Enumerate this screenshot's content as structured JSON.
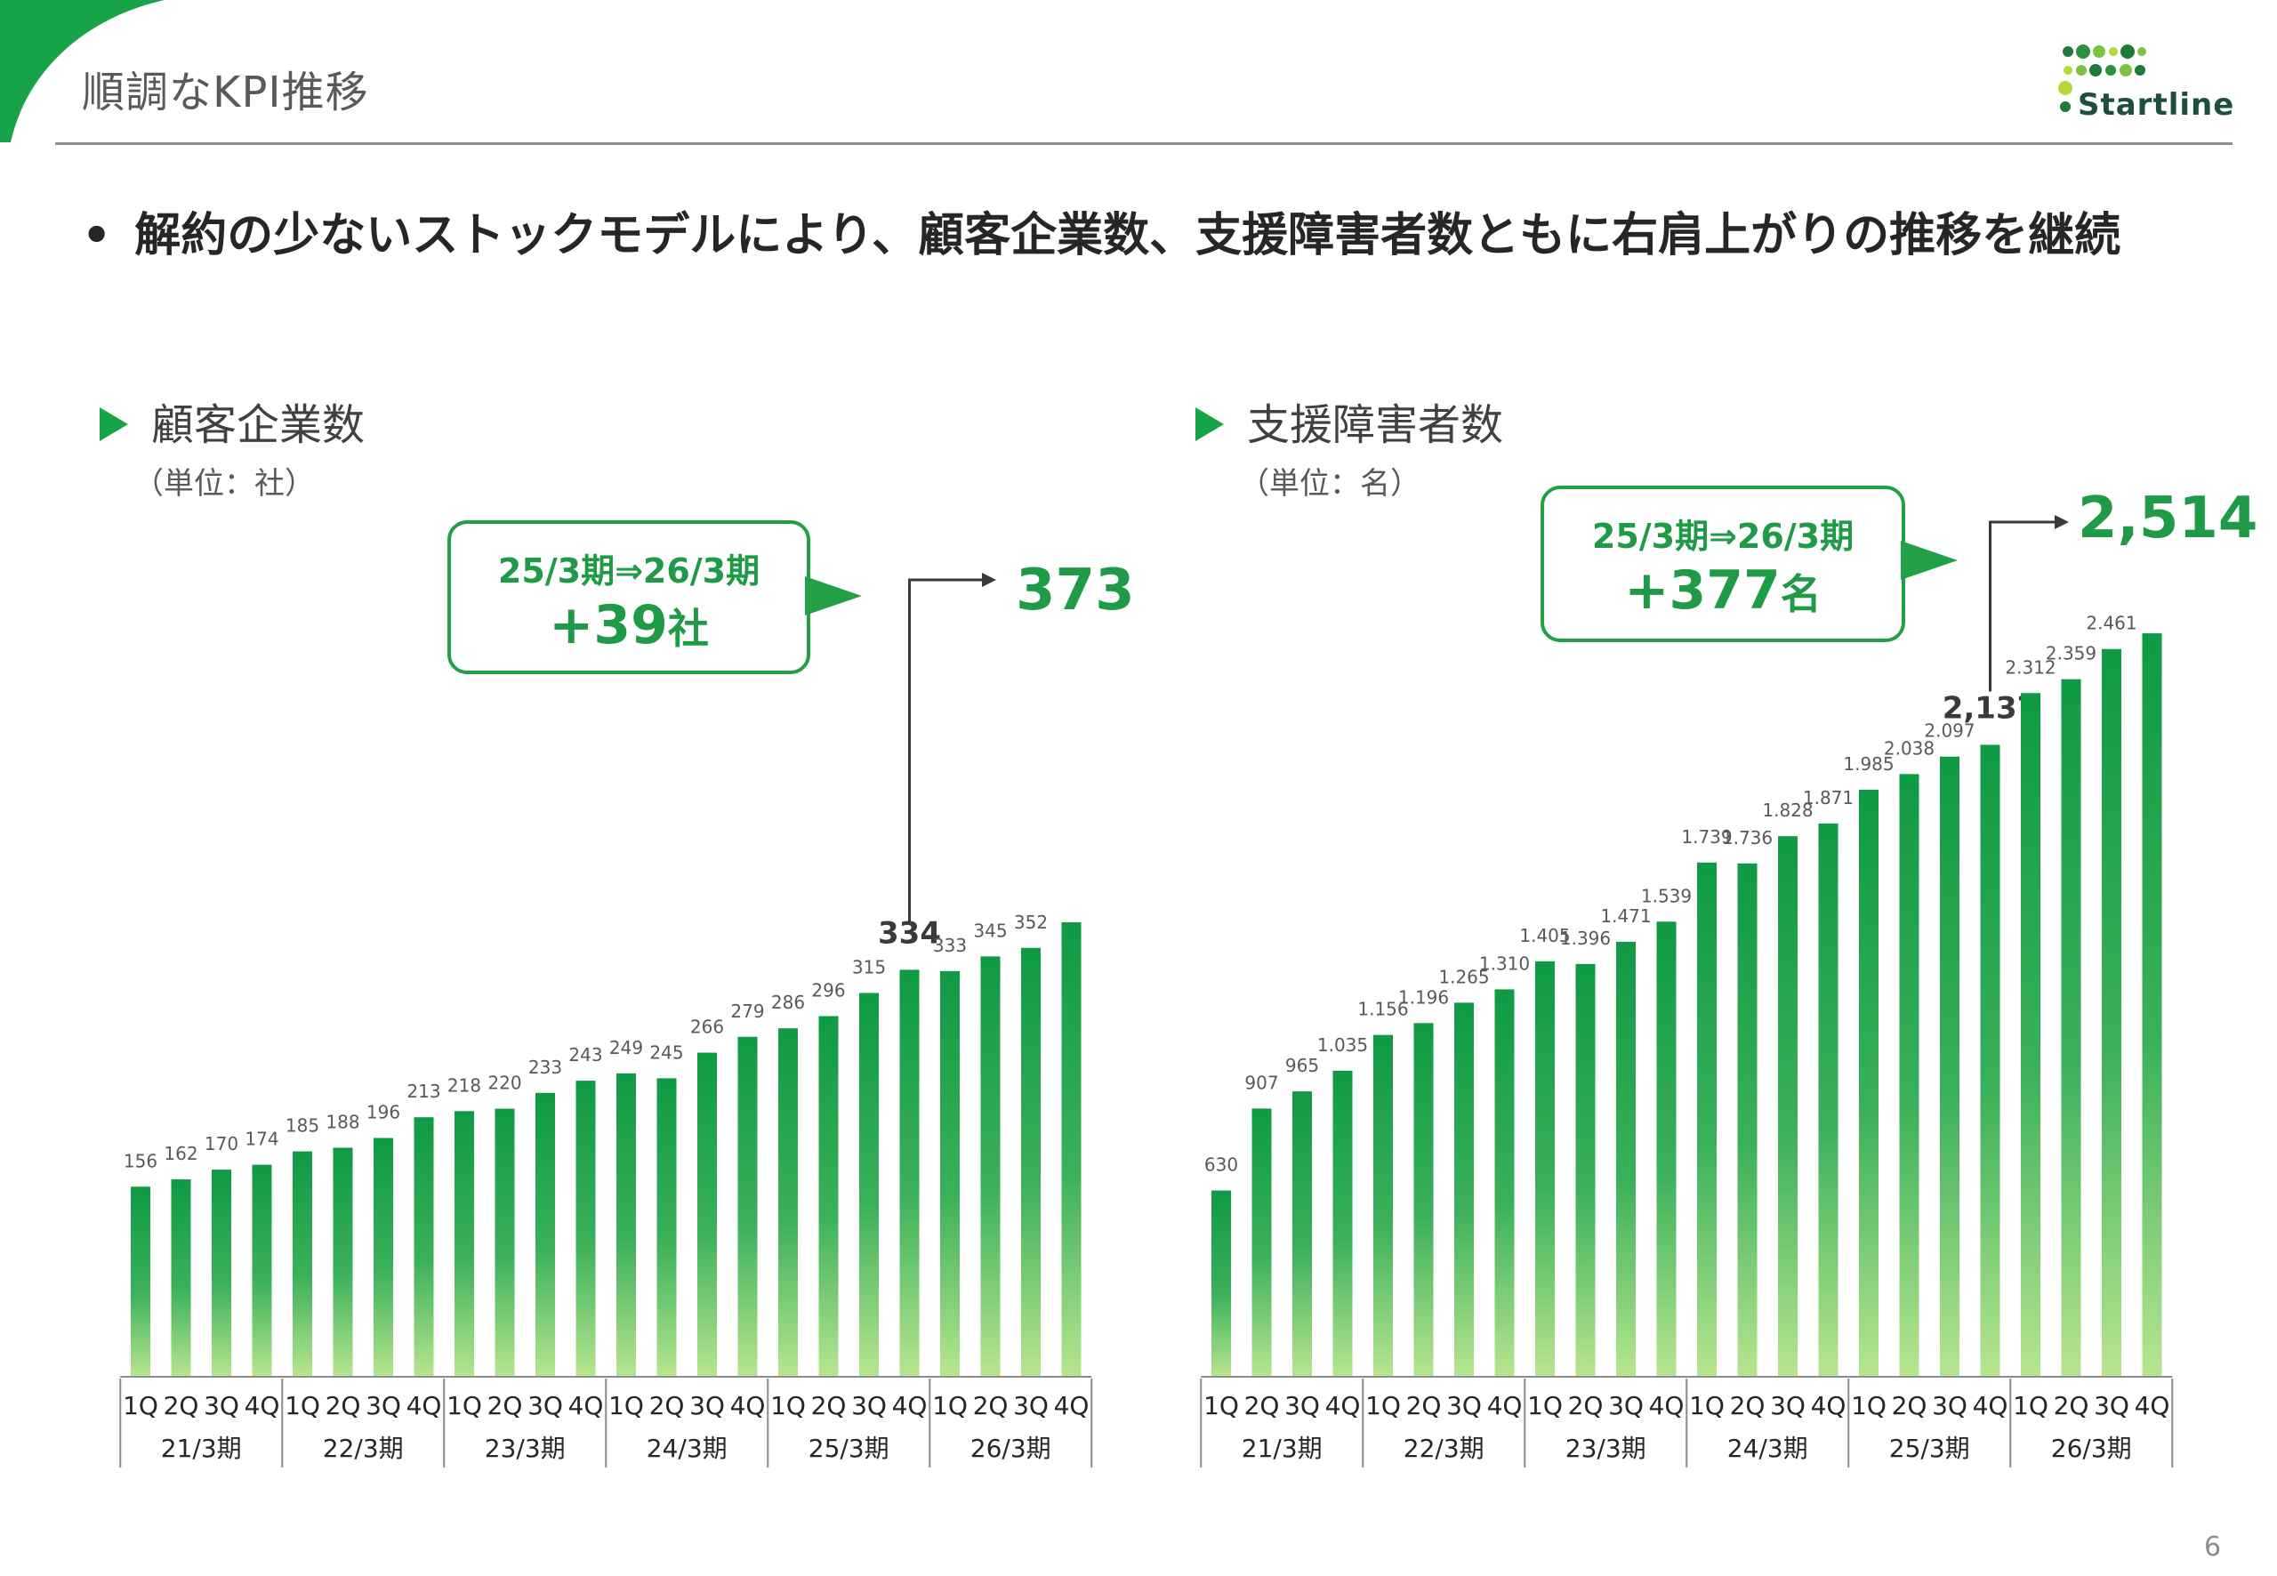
{
  "page": {
    "title": "順調なKPI推移",
    "headline": "解約の少ないストックモデルにより、顧客企業数、支援障害者数ともに右肩上がりの推移を継続",
    "bullet": "•",
    "page_number": "6",
    "logo": {
      "word": "Startline",
      "icon": "dot-cluster-logo",
      "colors": [
        "#1f7a3a",
        "#7cc242",
        "#b5d93a"
      ]
    },
    "accent_color": "#16a34a"
  },
  "left": {
    "heading": "顧客企業数",
    "unit": "（単位：社）",
    "callout": {
      "period": "25/3期⇒26/3期",
      "delta_prefix": "+",
      "delta_number": "39",
      "delta_unit": "社"
    },
    "latest_value": "373"
  },
  "right": {
    "heading": "支援障害者数",
    "unit": "（単位：名）",
    "callout": {
      "period": "25/3期⇒26/3期",
      "delta_prefix": "+",
      "delta_number": "377",
      "delta_unit": "名"
    },
    "latest_value": "2,514"
  },
  "chart_data": [
    {
      "type": "bar",
      "title": "顧客企業数",
      "unit": "社",
      "periods": [
        "21/3期",
        "22/3期",
        "23/3期",
        "24/3期",
        "25/3期",
        "26/3期"
      ],
      "quarters": [
        "1Q",
        "2Q",
        "3Q",
        "4Q"
      ],
      "values": [
        156,
        162,
        170,
        174,
        185,
        188,
        196,
        213,
        218,
        220,
        233,
        243,
        249,
        245,
        266,
        279,
        286,
        296,
        315,
        334,
        333,
        345,
        352,
        373
      ],
      "labels": [
        "156",
        "162",
        "170",
        "174",
        "185",
        "188",
        "196",
        "213",
        "218",
        "220",
        "233",
        "243",
        "249",
        "245",
        "266",
        "279",
        "286",
        "296",
        "315",
        "334",
        "333",
        "345",
        "352",
        "373"
      ],
      "highlighted": [
        19,
        23
      ],
      "ylim": [
        0,
        400
      ],
      "bar_gradient": [
        "#0f9a43",
        "#b8e58f"
      ],
      "grid": false
    },
    {
      "type": "bar",
      "title": "支援障害者数",
      "unit": "名",
      "periods": [
        "21/3期",
        "22/3期",
        "23/3期",
        "24/3期",
        "25/3期",
        "26/3期"
      ],
      "quarters": [
        "1Q",
        "2Q",
        "3Q",
        "4Q"
      ],
      "values": [
        630,
        907,
        965,
        1035,
        1156,
        1196,
        1265,
        1310,
        1405,
        1396,
        1471,
        1539,
        1739,
        1736,
        1828,
        1871,
        1985,
        2038,
        2097,
        2137,
        2312,
        2359,
        2461,
        2514
      ],
      "labels": [
        "630",
        "907",
        "965",
        "1.035",
        "1.156",
        "1.196",
        "1.265",
        "1.310",
        "1.405",
        "1.396",
        "1.471",
        "1.539",
        "1.739",
        "1.736",
        "1.828",
        "1.871",
        "1.985",
        "2.038",
        "2.097",
        "2,137",
        "2.312",
        "2.359",
        "2.461",
        "2,514"
      ],
      "highlighted": [
        19,
        23
      ],
      "ylim": [
        0,
        2700
      ],
      "bar_gradient": [
        "#0f9a43",
        "#b8e58f"
      ],
      "grid": false
    }
  ]
}
